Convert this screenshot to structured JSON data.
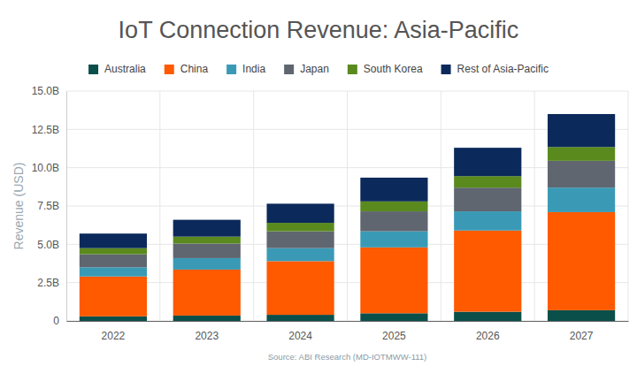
{
  "chart_data": {
    "type": "bar",
    "stacked": true,
    "title": "IoT Connection Revenue: Asia-Pacific",
    "y_label": "Revenue (USD)",
    "source": "Source: ABI Research (MD-IOTMWW-111)",
    "categories": [
      "2022",
      "2023",
      "2024",
      "2025",
      "2026",
      "2027"
    ],
    "series": [
      {
        "name": "Australia",
        "color": "#0b4f4a",
        "values": [
          0.3,
          0.35,
          0.4,
          0.5,
          0.6,
          0.7
        ]
      },
      {
        "name": "China",
        "color": "#ff5a00",
        "values": [
          2.6,
          3.0,
          3.5,
          4.3,
          5.3,
          6.4
        ]
      },
      {
        "name": "India",
        "color": "#3a9ab6",
        "values": [
          0.6,
          0.75,
          0.85,
          1.05,
          1.25,
          1.6
        ]
      },
      {
        "name": "Japan",
        "color": "#5f6670",
        "values": [
          0.85,
          0.95,
          1.1,
          1.3,
          1.55,
          1.75
        ]
      },
      {
        "name": "South Korea",
        "color": "#5a8a1e",
        "values": [
          0.4,
          0.45,
          0.55,
          0.65,
          0.75,
          0.9
        ]
      },
      {
        "name": "Rest of Asia-Pacific",
        "color": "#0b2a5b",
        "values": [
          0.95,
          1.1,
          1.25,
          1.55,
          1.85,
          2.15
        ]
      }
    ],
    "ylim": [
      0,
      15
    ],
    "yticks": [
      0,
      {
        "value": 2.5,
        "label": "2.5B"
      },
      {
        "value": 5,
        "label": "5.0B"
      },
      {
        "value": 7.5,
        "label": "7.5B"
      },
      {
        "value": 10,
        "label": "10.0B"
      },
      {
        "value": 12.5,
        "label": "12.5B"
      },
      {
        "value": 15,
        "label": "15.0B"
      }
    ],
    "grid": true,
    "legend": "top"
  }
}
